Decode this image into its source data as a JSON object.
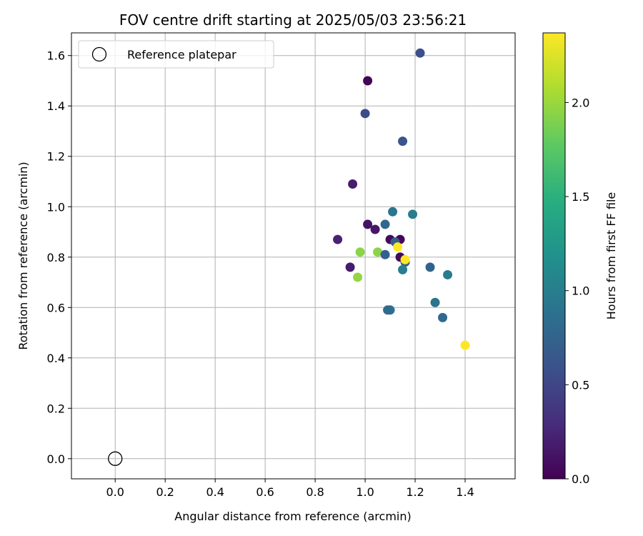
{
  "chart_data": {
    "type": "scatter",
    "title": "FOV centre drift starting at 2025/05/03 23:56:21",
    "xlabel": "Angular distance from reference (arcmin)",
    "ylabel": "Rotation from reference (arcmin)",
    "xlim": [
      -0.175,
      1.6
    ],
    "ylim": [
      -0.08,
      1.69
    ],
    "x_ticks": [
      0.0,
      0.2,
      0.4,
      0.6,
      0.8,
      1.0,
      1.2,
      1.4
    ],
    "x_tick_labels": [
      "0.0",
      "0.2",
      "0.4",
      "0.6",
      "0.8",
      "1.0",
      "1.2",
      "1.4"
    ],
    "y_ticks": [
      0.0,
      0.2,
      0.4,
      0.6,
      0.8,
      1.0,
      1.2,
      1.4,
      1.6
    ],
    "y_tick_labels": [
      "0.0",
      "0.2",
      "0.4",
      "0.6",
      "0.8",
      "1.0",
      "1.2",
      "1.4",
      "1.6"
    ],
    "grid": true,
    "legend": {
      "placement": "top-left",
      "entries": [
        "Reference platepar"
      ]
    },
    "reference_point": {
      "x": 0.0,
      "y": 0.0,
      "name": "Reference platepar"
    },
    "colorbar": {
      "label": "Hours from first FF file",
      "colormap": "viridis",
      "range": [
        0.0,
        2.37
      ],
      "ticks": [
        0.0,
        0.5,
        1.0,
        1.5,
        2.0
      ],
      "tick_labels": [
        "0.0",
        "0.5",
        "1.0",
        "1.5",
        "2.0"
      ]
    },
    "points": [
      {
        "x": 1.01,
        "y": 1.5,
        "c": 0.02
      },
      {
        "x": 1.22,
        "y": 1.61,
        "c": 0.58
      },
      {
        "x": 1.0,
        "y": 1.37,
        "c": 0.55
      },
      {
        "x": 1.15,
        "y": 1.26,
        "c": 0.62
      },
      {
        "x": 0.95,
        "y": 1.09,
        "c": 0.18
      },
      {
        "x": 1.11,
        "y": 0.98,
        "c": 0.92
      },
      {
        "x": 1.19,
        "y": 0.97,
        "c": 0.98
      },
      {
        "x": 1.08,
        "y": 0.93,
        "c": 0.78
      },
      {
        "x": 1.01,
        "y": 0.93,
        "c": 0.12
      },
      {
        "x": 1.04,
        "y": 0.91,
        "c": 0.15
      },
      {
        "x": 1.1,
        "y": 0.87,
        "c": 0.07
      },
      {
        "x": 1.14,
        "y": 0.87,
        "c": 0.04
      },
      {
        "x": 0.89,
        "y": 0.87,
        "c": 0.22
      },
      {
        "x": 1.12,
        "y": 0.86,
        "c": 0.7
      },
      {
        "x": 1.13,
        "y": 0.84,
        "c": 2.37
      },
      {
        "x": 0.98,
        "y": 0.82,
        "c": 1.95
      },
      {
        "x": 1.05,
        "y": 0.82,
        "c": 1.95
      },
      {
        "x": 1.08,
        "y": 0.81,
        "c": 0.72
      },
      {
        "x": 1.14,
        "y": 0.8,
        "c": 0.05
      },
      {
        "x": 1.16,
        "y": 0.78,
        "c": 0.7
      },
      {
        "x": 1.16,
        "y": 0.79,
        "c": 2.37
      },
      {
        "x": 0.94,
        "y": 0.76,
        "c": 0.18
      },
      {
        "x": 1.26,
        "y": 0.76,
        "c": 0.75
      },
      {
        "x": 1.15,
        "y": 0.75,
        "c": 1.0
      },
      {
        "x": 1.33,
        "y": 0.73,
        "c": 0.98
      },
      {
        "x": 0.97,
        "y": 0.72,
        "c": 1.98
      },
      {
        "x": 1.28,
        "y": 0.62,
        "c": 0.9
      },
      {
        "x": 1.1,
        "y": 0.59,
        "c": 0.88
      },
      {
        "x": 1.09,
        "y": 0.59,
        "c": 0.82
      },
      {
        "x": 1.31,
        "y": 0.56,
        "c": 0.8
      },
      {
        "x": 1.4,
        "y": 0.45,
        "c": 2.37
      }
    ]
  }
}
